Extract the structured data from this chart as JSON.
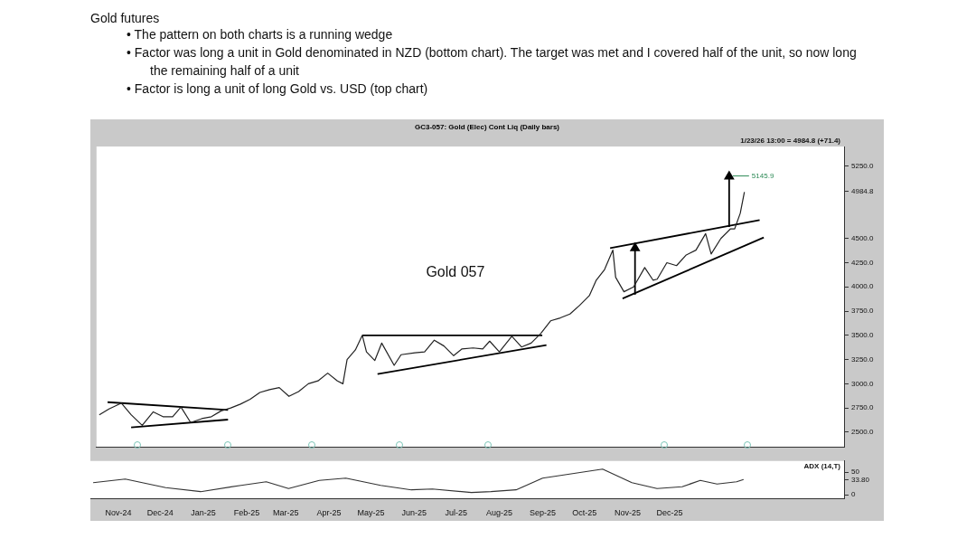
{
  "chart_data": [
    {
      "type": "other",
      "title": "Gold futures",
      "annotations": [
        "• The pattern on both charts is a running wedge",
        "• Factor was long a unit in Gold denominated in NZD (bottom chart). The target was met and I covered half of the unit, so now long the remaining half of a unit",
        "• Factor is long a unit of long Gold vs. USD (top chart)"
      ]
    },
    {
      "type": "line",
      "title": "GC3-057: Gold (Elec) Cont Liq (Daily bars)",
      "xlim": [
        "2024-10-12",
        "2026-04-05"
      ],
      "ylim": [
        2350,
        5450
      ],
      "yticks": [
        {
          "value": 2500,
          "label": "2500.0"
        },
        {
          "value": 2750,
          "label": "2750.0"
        },
        {
          "value": 3000,
          "label": "3000.0"
        },
        {
          "value": 3250,
          "label": "3250.0"
        },
        {
          "value": 3500,
          "label": "3500.0"
        },
        {
          "value": 3750,
          "label": "3750.0"
        },
        {
          "value": 4000,
          "label": "4000.0"
        },
        {
          "value": 4250,
          "label": "4250.0"
        },
        {
          "value": 4500,
          "label": "4500.0"
        },
        {
          "value": 4984.8,
          "label": "4984.8"
        },
        {
          "value": 5250,
          "label": "5250.0"
        }
      ],
      "tick_labels": "y",
      "grid": false,
      "legend": false,
      "marker": "none",
      "annotations": [
        "Gold 057",
        "1/23/26 13:00 = 4984.8 (+71.4)",
        {
          "text": "5145.9",
          "x": "2026-01-12",
          "y": 5145.9
        }
      ],
      "series": [
        {
          "color": "#222222",
          "x": [
            "2024-10-14",
            "2024-10-21",
            "2024-10-30",
            "2024-11-06",
            "2024-11-14",
            "2024-11-22",
            "2024-11-29",
            "2024-12-06",
            "2024-12-12",
            "2024-12-19",
            "2024-12-27",
            "2025-01-03",
            "2025-01-10",
            "2025-01-17",
            "2025-01-24",
            "2025-01-31",
            "2025-02-07",
            "2025-02-14",
            "2025-02-21",
            "2025-02-28",
            "2025-03-07",
            "2025-03-14",
            "2025-03-21",
            "2025-03-28",
            "2025-04-04",
            "2025-04-08",
            "2025-04-11",
            "2025-04-17",
            "2025-04-22",
            "2025-04-25",
            "2025-05-01",
            "2025-05-06",
            "2025-05-15",
            "2025-05-20",
            "2025-05-30",
            "2025-06-06",
            "2025-06-13",
            "2025-06-20",
            "2025-06-27",
            "2025-07-03",
            "2025-07-11",
            "2025-07-18",
            "2025-07-23",
            "2025-07-30",
            "2025-08-08",
            "2025-08-15",
            "2025-08-22",
            "2025-08-29",
            "2025-09-05",
            "2025-09-12",
            "2025-09-19",
            "2025-09-26",
            "2025-10-03",
            "2025-10-08",
            "2025-10-14",
            "2025-10-20",
            "2025-10-22",
            "2025-10-28",
            "2025-11-04",
            "2025-11-12",
            "2025-11-18",
            "2025-11-21",
            "2025-11-28",
            "2025-12-05",
            "2025-12-12",
            "2025-12-19",
            "2025-12-26",
            "2025-12-30",
            "2026-01-06",
            "2026-01-13",
            "2026-01-16",
            "2026-01-20",
            "2026-01-23"
          ],
          "values": [
            2680,
            2740,
            2800,
            2680,
            2570,
            2710,
            2660,
            2660,
            2760,
            2600,
            2640,
            2660,
            2720,
            2750,
            2790,
            2840,
            2910,
            2940,
            2960,
            2870,
            2920,
            3000,
            3030,
            3110,
            3030,
            3000,
            3250,
            3350,
            3500,
            3330,
            3240,
            3420,
            3190,
            3300,
            3320,
            3330,
            3450,
            3390,
            3290,
            3360,
            3370,
            3360,
            3440,
            3330,
            3490,
            3380,
            3420,
            3520,
            3650,
            3680,
            3720,
            3810,
            3910,
            4070,
            4180,
            4380,
            4100,
            3950,
            4000,
            4200,
            4070,
            4080,
            4250,
            4220,
            4330,
            4380,
            4550,
            4340,
            4500,
            4600,
            4600,
            4760,
            4980
          ]
        },
        {
          "color": "#000000",
          "x": [
            "2024-10-20",
            "2025-01-15"
          ],
          "values": [
            2810,
            2730
          ]
        },
        {
          "color": "#000000",
          "x": [
            "2024-11-06",
            "2025-01-15"
          ],
          "values": [
            2550,
            2630
          ]
        },
        {
          "color": "#000000",
          "x": [
            "2025-04-22",
            "2025-08-30"
          ],
          "values": [
            3500,
            3500
          ]
        },
        {
          "color": "#000000",
          "x": [
            "2025-05-03",
            "2025-09-02"
          ],
          "values": [
            3100,
            3400
          ]
        },
        {
          "color": "#000000",
          "x": [
            "2025-10-18",
            "2026-02-03"
          ],
          "values": [
            4400,
            4690
          ]
        },
        {
          "color": "#000000",
          "x": [
            "2025-10-27",
            "2026-02-06"
          ],
          "values": [
            3880,
            4510
          ]
        },
        {
          "color": "#000000",
          "marker": "triangle",
          "x": [
            "2025-11-05",
            "2025-11-05"
          ],
          "values": [
            3920,
            4400
          ]
        },
        {
          "color": "#000000",
          "marker": "triangle",
          "x": [
            "2026-01-12",
            "2026-01-12"
          ],
          "values": [
            4620,
            5140
          ]
        }
      ]
    },
    {
      "type": "line",
      "xlim": [
        "2024-10-12",
        "2026-04-05"
      ],
      "ylim": [
        -8,
        75
      ],
      "yticks": [
        0,
        50,
        {
          "value": 33.8,
          "label": "33.80"
        }
      ],
      "xticks": [
        {
          "value": "2024-11-01",
          "label": "Nov-24"
        },
        {
          "value": "2024-12-01",
          "label": "Dec-24"
        },
        {
          "value": "2025-01-01",
          "label": "Jan-25"
        },
        {
          "value": "2025-02-01",
          "label": "Feb-25"
        },
        {
          "value": "2025-03-01",
          "label": "Mar-25"
        },
        {
          "value": "2025-04-01",
          "label": "Apr-25"
        },
        {
          "value": "2025-05-01",
          "label": "May-25"
        },
        {
          "value": "2025-06-01",
          "label": "Jun-25"
        },
        {
          "value": "2025-07-01",
          "label": "Jul-25"
        },
        {
          "value": "2025-08-01",
          "label": "Aug-25"
        },
        {
          "value": "2025-09-01",
          "label": "Sep-25"
        },
        {
          "value": "2025-10-01",
          "label": "Oct-25"
        },
        {
          "value": "2025-11-01",
          "label": "Nov-25"
        },
        {
          "value": "2025-12-01",
          "label": "Dec-25"
        }
      ],
      "grid": false,
      "legend": false,
      "marker": "none",
      "series": [
        {
          "name": "ADX (14,T)",
          "color": "#333333",
          "x": [
            "2024-10-14",
            "2024-11-06",
            "2024-12-05",
            "2024-12-30",
            "2025-01-28",
            "2025-02-15",
            "2025-03-03",
            "2025-03-25",
            "2025-04-13",
            "2025-05-08",
            "2025-05-30",
            "2025-06-14",
            "2025-07-12",
            "2025-07-26",
            "2025-08-13",
            "2025-09-01",
            "2025-10-14",
            "2025-11-04",
            "2025-11-22",
            "2025-12-10",
            "2025-12-23",
            "2026-01-04",
            "2026-01-18",
            "2026-01-23"
          ],
          "values": [
            27,
            35,
            16,
            7,
            21,
            29,
            14,
            32,
            37,
            21,
            11,
            13,
            5,
            7,
            11,
            37,
            57,
            27,
            14,
            18,
            32,
            24,
            29,
            34
          ]
        }
      ]
    }
  ]
}
